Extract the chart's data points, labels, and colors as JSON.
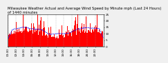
{
  "title_line1": "Milwaukee Weather Actual and Average Wind Speed by Minute mph (Last 24 Hours)",
  "title_line2": "of 1440 minutes",
  "background_color": "#f0f0f0",
  "plot_bg_color": "#ffffff",
  "n_points": 1440,
  "y_min": 0,
  "y_max": 25,
  "bar_color": "#ff0000",
  "avg_color": "#0000ff",
  "avg_linewidth": 0.6,
  "grid_color": "#999999",
  "title_fontsize": 3.8,
  "tick_fontsize": 3.0,
  "ytick_values": [
    0,
    5,
    10,
    15,
    20,
    25
  ],
  "seed": 42
}
